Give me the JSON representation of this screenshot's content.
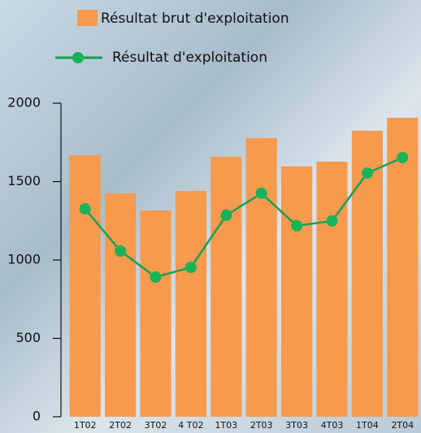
{
  "chart_data": {
    "type": "bar",
    "categories": [
      "1T02",
      "2T02",
      "3T02",
      "4 T02",
      "1T03",
      "2T03",
      "3T03",
      "4T03",
      "1T04",
      "2T04"
    ],
    "series": [
      {
        "name": "Résultat brut d'exploitation",
        "type": "bar",
        "color": "#f79a4e",
        "values": [
          1668,
          1425,
          1316,
          1440,
          1658,
          1777,
          1596,
          1627,
          1824,
          1907
        ]
      },
      {
        "name": "Résultat d'exploitation",
        "type": "line",
        "color": "#17a055",
        "values": [
          1326,
          1057,
          891,
          953,
          1285,
          1425,
          1218,
          1249,
          1554,
          1653
        ]
      }
    ],
    "ylim": [
      0,
      2000
    ],
    "yticks": [
      0,
      500,
      1000,
      1500,
      2000
    ],
    "grid": false
  }
}
